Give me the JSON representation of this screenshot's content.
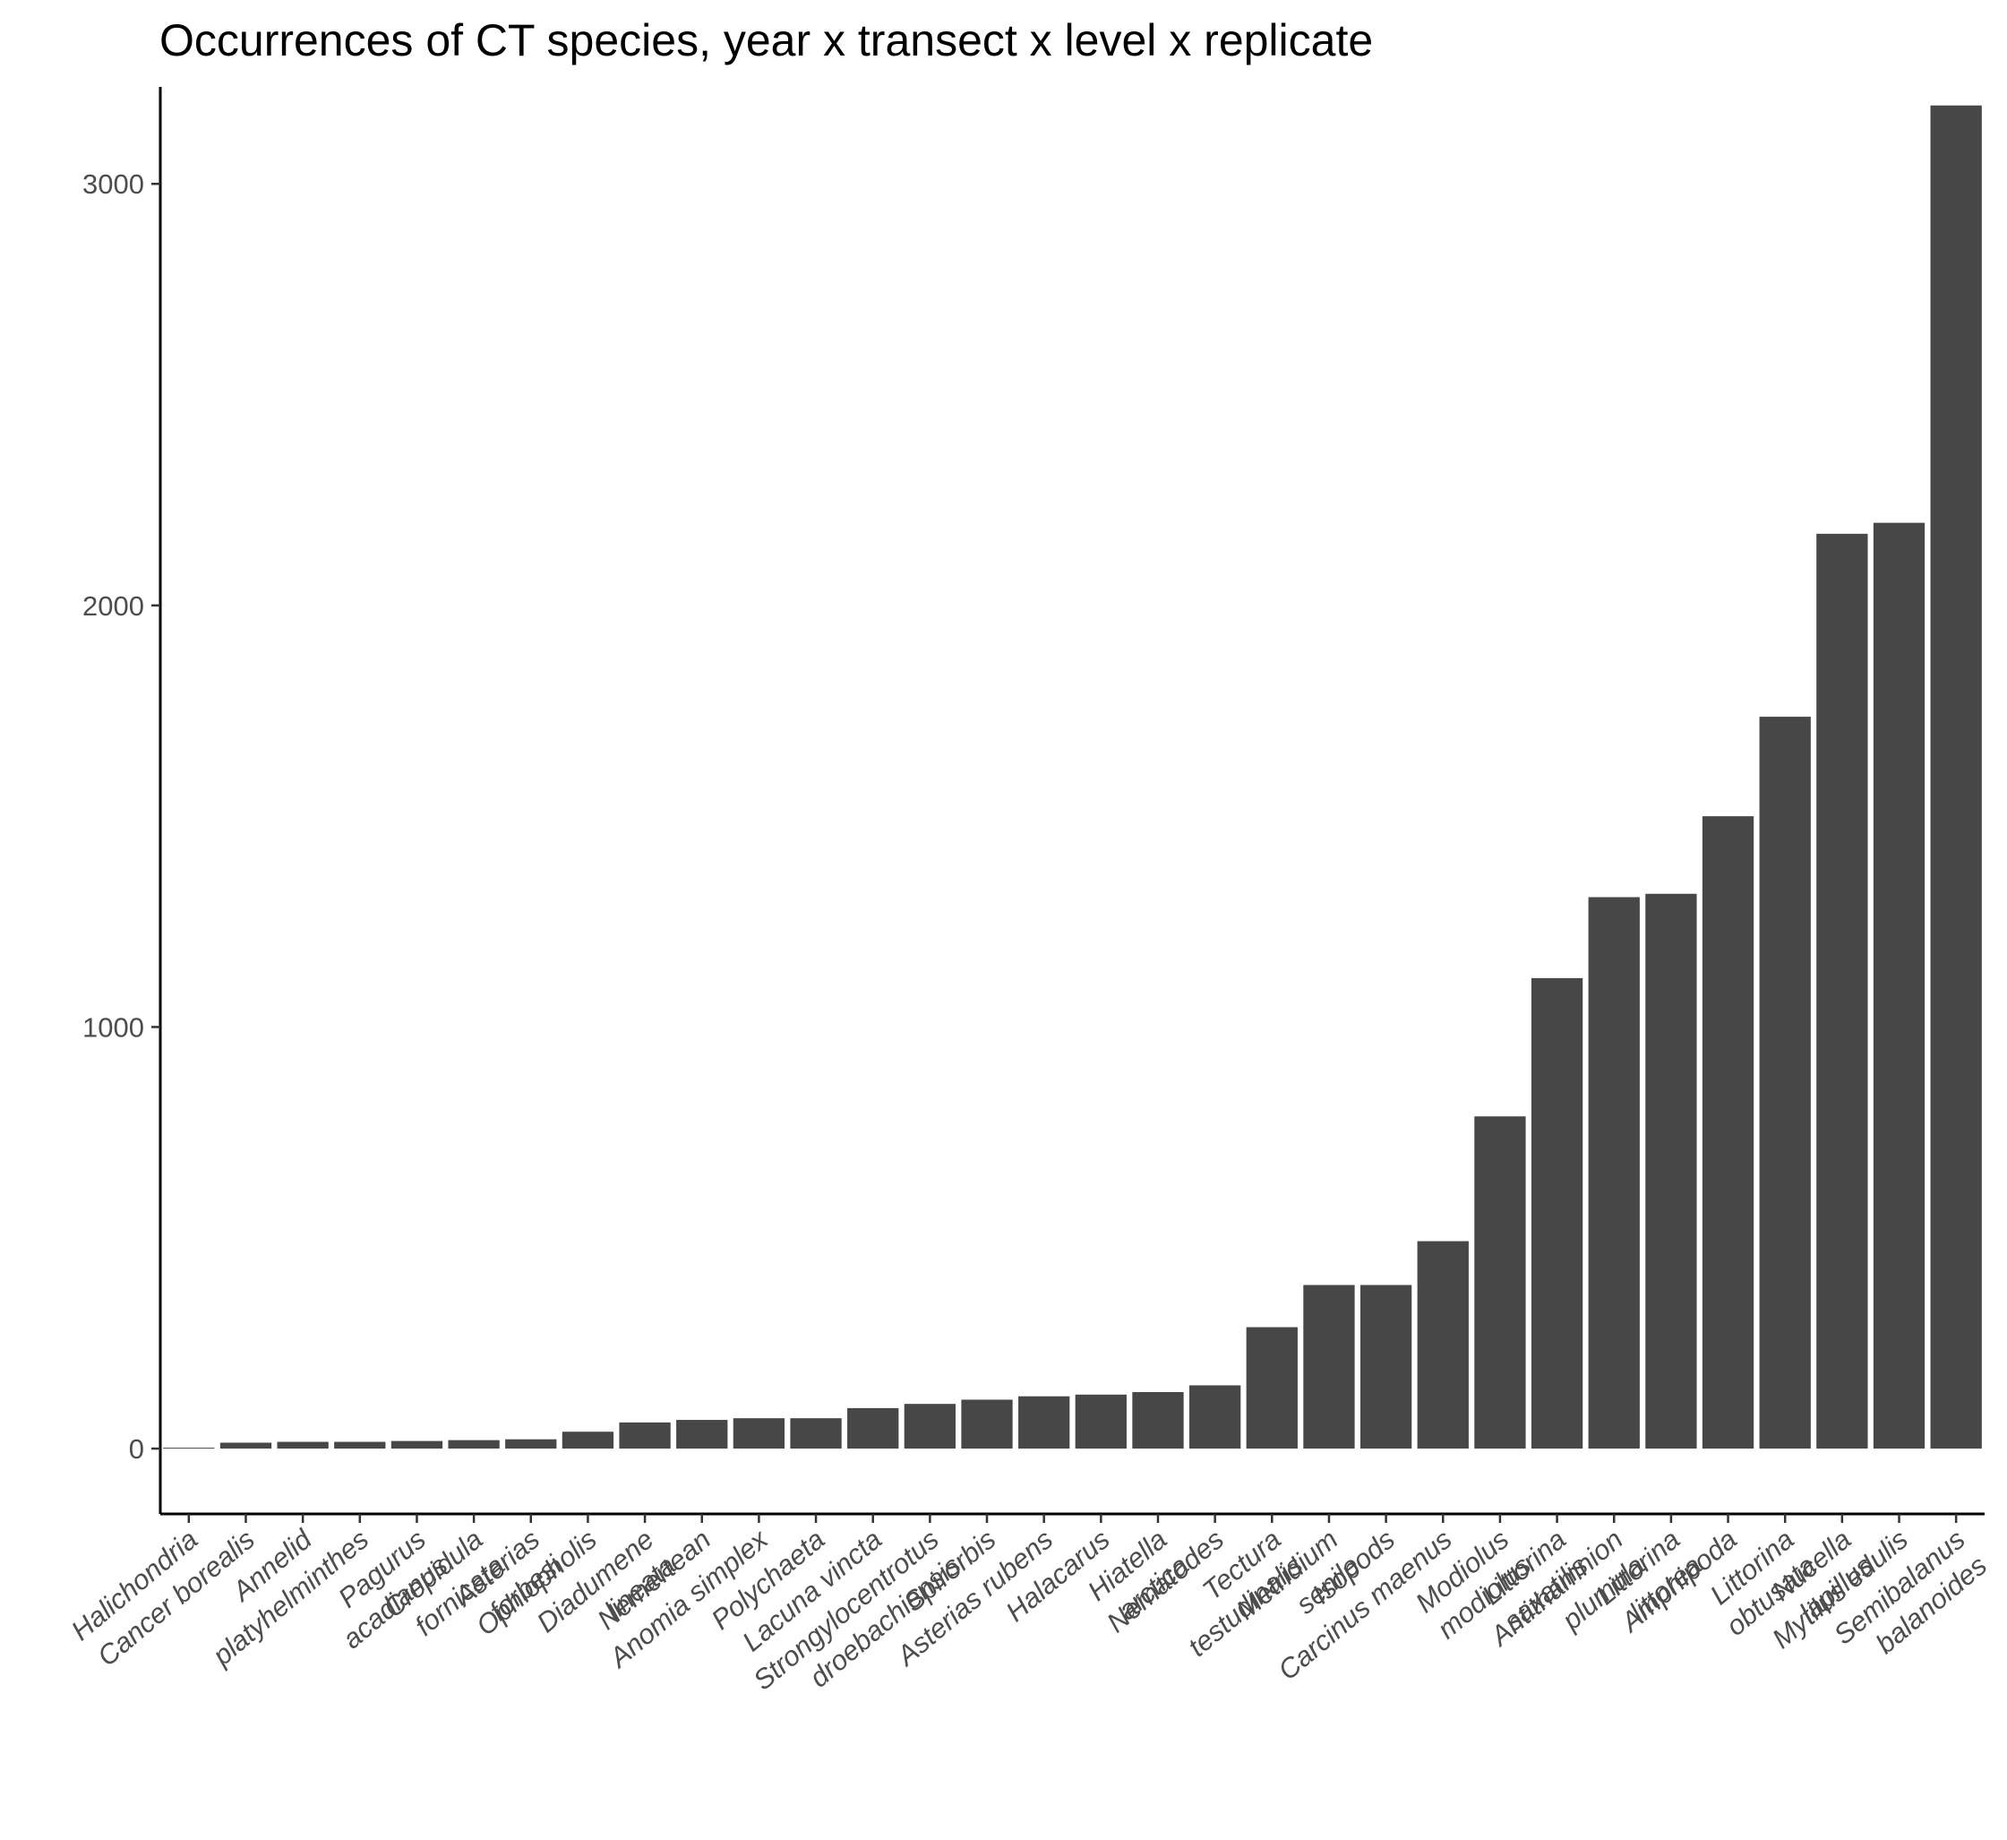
{
  "chart_data": {
    "type": "bar",
    "title": "Occurrences of CT species, year x transect x level x replicate",
    "xlabel": "",
    "ylabel": "",
    "ylim": [
      -155,
      3230
    ],
    "yticks": [
      0,
      1000,
      2000,
      3000
    ],
    "grid": false,
    "bar_color": "#474747",
    "categories": [
      [
        "Halichondria"
      ],
      [
        "Cancer borealis"
      ],
      [
        "Annelid"
      ],
      [
        "platyhelminthes"
      ],
      [
        "Pagurus",
        "acadianus"
      ],
      [
        "Crepidula",
        "fornicata"
      ],
      [
        "Asterias",
        "forbesi"
      ],
      [
        "Ophiopholis"
      ],
      [
        "Diadumene",
        "lineata"
      ],
      [
        "Nemertean"
      ],
      [
        "Anomia simplex"
      ],
      [
        "Polychaeta"
      ],
      [
        "Lacuna vincta"
      ],
      [
        "Strongylocentrotus",
        "droebachiensis"
      ],
      [
        "Spirorbis"
      ],
      [
        "Asterias rubens"
      ],
      [
        "Halacarus"
      ],
      [
        "Hiatella",
        "arctica"
      ],
      [
        "Nematodes"
      ],
      [
        "Tectura",
        "testudinalis"
      ],
      [
        "Metridium",
        "senile"
      ],
      [
        "Isopods"
      ],
      [
        "Carcinus maenus"
      ],
      [
        "Modiolus",
        "modiolus"
      ],
      [
        "Littorina",
        "saxatilis"
      ],
      [
        "Antithamnion",
        "plumula"
      ],
      [
        "Littorina",
        "littorea"
      ],
      [
        "Amphipoda"
      ],
      [
        "Littorina",
        "obtusata"
      ],
      [
        "Nucella",
        "lapillus"
      ],
      [
        "Mytilus edulis"
      ],
      [
        "Semibalanus",
        "balanoides"
      ]
    ],
    "values": [
      2,
      14,
      16,
      16,
      18,
      20,
      22,
      40,
      62,
      68,
      72,
      72,
      96,
      106,
      116,
      124,
      128,
      134,
      150,
      288,
      388,
      388,
      492,
      788,
      1116,
      1308,
      1316,
      1500,
      1736,
      2170,
      2196,
      3186
    ]
  }
}
